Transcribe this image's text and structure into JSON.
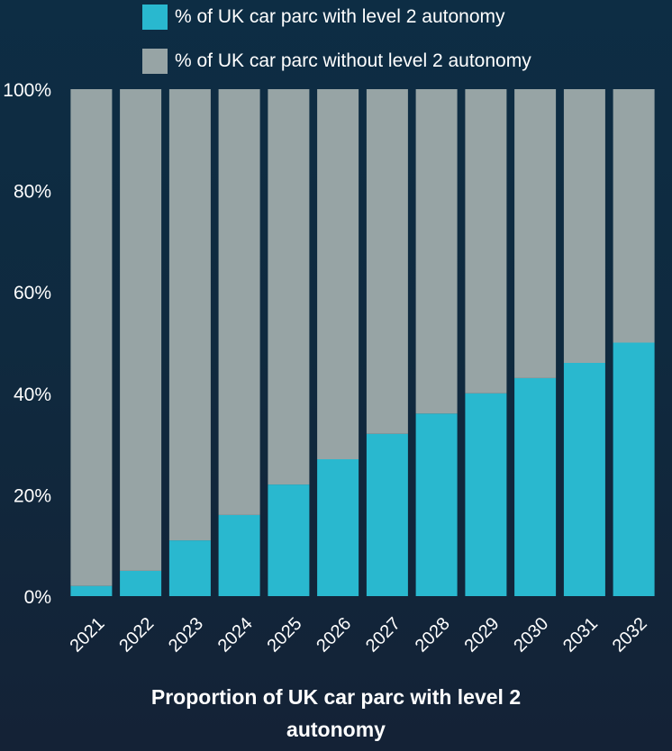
{
  "colors": {
    "with_level2": "#29b8cf",
    "without_level2": "#97a4a5",
    "text": "#ffffff"
  },
  "legend": {
    "items": [
      {
        "label": "% of UK car parc with level 2 autonomy",
        "color": "#29b8cf"
      },
      {
        "label": "% of UK car parc without level 2 autonomy",
        "color": "#97a4a5"
      }
    ]
  },
  "title": {
    "line1": "Proportion of UK car parc with level 2",
    "line2": "autonomy"
  },
  "chart_data": {
    "type": "bar",
    "stacked": true,
    "title": "Proportion of UK car parc with level 2 autonomy",
    "xlabel": "",
    "ylabel": "",
    "ylim": [
      0,
      100
    ],
    "yticks": [
      "0%",
      "20%",
      "40%",
      "60%",
      "80%",
      "100%"
    ],
    "categories": [
      "2021",
      "2022",
      "2023",
      "2024",
      "2025",
      "2026",
      "2027",
      "2028",
      "2029",
      "2030",
      "2031",
      "2032"
    ],
    "series": [
      {
        "name": "% of UK car parc with level 2 autonomy",
        "values": [
          2,
          5,
          11,
          16,
          22,
          27,
          32,
          36,
          40,
          43,
          46,
          50
        ]
      },
      {
        "name": "% of UK car parc without level 2 autonomy",
        "values": [
          98,
          95,
          89,
          84,
          78,
          73,
          68,
          64,
          60,
          57,
          54,
          50
        ]
      }
    ],
    "legend_position": "top",
    "grid": false
  }
}
